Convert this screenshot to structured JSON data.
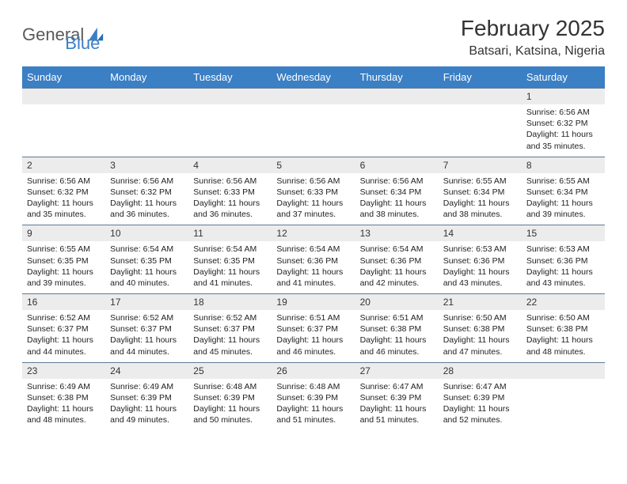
{
  "logo": {
    "text1": "General",
    "text2": "Blue"
  },
  "title": "February 2025",
  "location": "Batsari, Katsina, Nigeria",
  "colors": {
    "header_bg": "#3b7fc4",
    "header_text": "#ffffff",
    "date_bar_bg": "#ececec",
    "row_border": "#5e7a94",
    "body_text": "#222222",
    "logo_gray": "#5a5a5a",
    "logo_blue": "#3b7fc4"
  },
  "day_headers": [
    "Sunday",
    "Monday",
    "Tuesday",
    "Wednesday",
    "Thursday",
    "Friday",
    "Saturday"
  ],
  "weeks": [
    [
      {
        "date": "",
        "empty": true
      },
      {
        "date": "",
        "empty": true
      },
      {
        "date": "",
        "empty": true
      },
      {
        "date": "",
        "empty": true
      },
      {
        "date": "",
        "empty": true
      },
      {
        "date": "",
        "empty": true
      },
      {
        "date": "1",
        "sunrise": "Sunrise: 6:56 AM",
        "sunset": "Sunset: 6:32 PM",
        "daylight": "Daylight: 11 hours and 35 minutes."
      }
    ],
    [
      {
        "date": "2",
        "sunrise": "Sunrise: 6:56 AM",
        "sunset": "Sunset: 6:32 PM",
        "daylight": "Daylight: 11 hours and 35 minutes."
      },
      {
        "date": "3",
        "sunrise": "Sunrise: 6:56 AM",
        "sunset": "Sunset: 6:32 PM",
        "daylight": "Daylight: 11 hours and 36 minutes."
      },
      {
        "date": "4",
        "sunrise": "Sunrise: 6:56 AM",
        "sunset": "Sunset: 6:33 PM",
        "daylight": "Daylight: 11 hours and 36 minutes."
      },
      {
        "date": "5",
        "sunrise": "Sunrise: 6:56 AM",
        "sunset": "Sunset: 6:33 PM",
        "daylight": "Daylight: 11 hours and 37 minutes."
      },
      {
        "date": "6",
        "sunrise": "Sunrise: 6:56 AM",
        "sunset": "Sunset: 6:34 PM",
        "daylight": "Daylight: 11 hours and 38 minutes."
      },
      {
        "date": "7",
        "sunrise": "Sunrise: 6:55 AM",
        "sunset": "Sunset: 6:34 PM",
        "daylight": "Daylight: 11 hours and 38 minutes."
      },
      {
        "date": "8",
        "sunrise": "Sunrise: 6:55 AM",
        "sunset": "Sunset: 6:34 PM",
        "daylight": "Daylight: 11 hours and 39 minutes."
      }
    ],
    [
      {
        "date": "9",
        "sunrise": "Sunrise: 6:55 AM",
        "sunset": "Sunset: 6:35 PM",
        "daylight": "Daylight: 11 hours and 39 minutes."
      },
      {
        "date": "10",
        "sunrise": "Sunrise: 6:54 AM",
        "sunset": "Sunset: 6:35 PM",
        "daylight": "Daylight: 11 hours and 40 minutes."
      },
      {
        "date": "11",
        "sunrise": "Sunrise: 6:54 AM",
        "sunset": "Sunset: 6:35 PM",
        "daylight": "Daylight: 11 hours and 41 minutes."
      },
      {
        "date": "12",
        "sunrise": "Sunrise: 6:54 AM",
        "sunset": "Sunset: 6:36 PM",
        "daylight": "Daylight: 11 hours and 41 minutes."
      },
      {
        "date": "13",
        "sunrise": "Sunrise: 6:54 AM",
        "sunset": "Sunset: 6:36 PM",
        "daylight": "Daylight: 11 hours and 42 minutes."
      },
      {
        "date": "14",
        "sunrise": "Sunrise: 6:53 AM",
        "sunset": "Sunset: 6:36 PM",
        "daylight": "Daylight: 11 hours and 43 minutes."
      },
      {
        "date": "15",
        "sunrise": "Sunrise: 6:53 AM",
        "sunset": "Sunset: 6:36 PM",
        "daylight": "Daylight: 11 hours and 43 minutes."
      }
    ],
    [
      {
        "date": "16",
        "sunrise": "Sunrise: 6:52 AM",
        "sunset": "Sunset: 6:37 PM",
        "daylight": "Daylight: 11 hours and 44 minutes."
      },
      {
        "date": "17",
        "sunrise": "Sunrise: 6:52 AM",
        "sunset": "Sunset: 6:37 PM",
        "daylight": "Daylight: 11 hours and 44 minutes."
      },
      {
        "date": "18",
        "sunrise": "Sunrise: 6:52 AM",
        "sunset": "Sunset: 6:37 PM",
        "daylight": "Daylight: 11 hours and 45 minutes."
      },
      {
        "date": "19",
        "sunrise": "Sunrise: 6:51 AM",
        "sunset": "Sunset: 6:37 PM",
        "daylight": "Daylight: 11 hours and 46 minutes."
      },
      {
        "date": "20",
        "sunrise": "Sunrise: 6:51 AM",
        "sunset": "Sunset: 6:38 PM",
        "daylight": "Daylight: 11 hours and 46 minutes."
      },
      {
        "date": "21",
        "sunrise": "Sunrise: 6:50 AM",
        "sunset": "Sunset: 6:38 PM",
        "daylight": "Daylight: 11 hours and 47 minutes."
      },
      {
        "date": "22",
        "sunrise": "Sunrise: 6:50 AM",
        "sunset": "Sunset: 6:38 PM",
        "daylight": "Daylight: 11 hours and 48 minutes."
      }
    ],
    [
      {
        "date": "23",
        "sunrise": "Sunrise: 6:49 AM",
        "sunset": "Sunset: 6:38 PM",
        "daylight": "Daylight: 11 hours and 48 minutes."
      },
      {
        "date": "24",
        "sunrise": "Sunrise: 6:49 AM",
        "sunset": "Sunset: 6:39 PM",
        "daylight": "Daylight: 11 hours and 49 minutes."
      },
      {
        "date": "25",
        "sunrise": "Sunrise: 6:48 AM",
        "sunset": "Sunset: 6:39 PM",
        "daylight": "Daylight: 11 hours and 50 minutes."
      },
      {
        "date": "26",
        "sunrise": "Sunrise: 6:48 AM",
        "sunset": "Sunset: 6:39 PM",
        "daylight": "Daylight: 11 hours and 51 minutes."
      },
      {
        "date": "27",
        "sunrise": "Sunrise: 6:47 AM",
        "sunset": "Sunset: 6:39 PM",
        "daylight": "Daylight: 11 hours and 51 minutes."
      },
      {
        "date": "28",
        "sunrise": "Sunrise: 6:47 AM",
        "sunset": "Sunset: 6:39 PM",
        "daylight": "Daylight: 11 hours and 52 minutes."
      },
      {
        "date": "",
        "empty": true
      }
    ]
  ]
}
